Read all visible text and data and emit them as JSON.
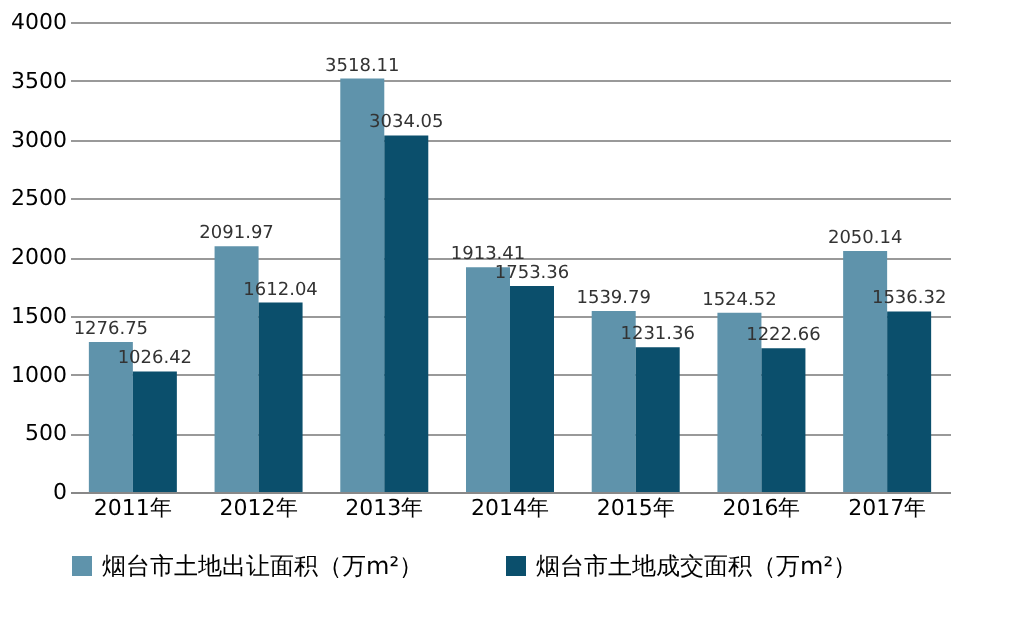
{
  "chart_data": {
    "type": "bar",
    "categories": [
      "2011年",
      "2012年",
      "2013年",
      "2014年",
      "2015年",
      "2016年",
      "2017年"
    ],
    "series": [
      {
        "name": "烟台市土地出让面积（万m²）",
        "color": "#5f93ab",
        "values": [
          1276.75,
          2091.97,
          3518.11,
          1913.41,
          1539.79,
          1524.52,
          2050.14
        ]
      },
      {
        "name": "烟台市土地成交面积（万m²）",
        "color": "#0b4f6c",
        "values": [
          1026.42,
          1612.04,
          3034.05,
          1753.36,
          1231.36,
          1222.66,
          1536.32
        ]
      }
    ],
    "ylim": [
      0,
      4000
    ],
    "yticks": [
      0,
      500,
      1000,
      1500,
      2000,
      2500,
      3000,
      3500,
      4000
    ],
    "grid": "y",
    "legend": "bottom",
    "data_labels": true
  }
}
